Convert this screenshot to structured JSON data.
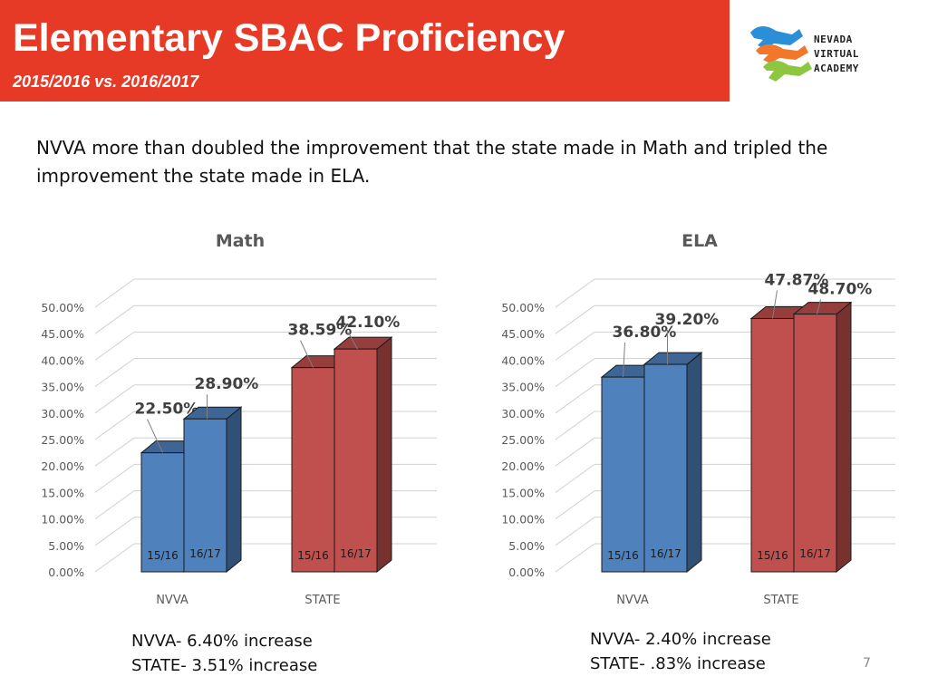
{
  "slide": {
    "title": "Elementary SBAC Proficiency",
    "subtitle": "2015/2016 vs. 2016/2017",
    "intro": "NVVA more than doubled the improvement that the state made in Math and tripled the improvement the state made in ELA.",
    "page_number": "7"
  },
  "logo": {
    "line1": "NEVADA",
    "line2": "VIRTUAL",
    "line3": "ACADEMY",
    "icon": "horse-icon",
    "colors": [
      "#2a8fd6",
      "#f2772a",
      "#8dc63f"
    ]
  },
  "chart_data": [
    {
      "type": "bar",
      "title": "Math",
      "categories": [
        "NVVA",
        "STATE"
      ],
      "sub_labels": [
        "15/16",
        "16/17"
      ],
      "series": [
        {
          "values": [
            22.5,
            38.59
          ]
        },
        {
          "values": [
            28.9,
            42.1
          ]
        }
      ],
      "data_labels": [
        [
          "22.50%",
          "28.90%"
        ],
        [
          "38.59%",
          "42.10%"
        ]
      ],
      "category_colors": [
        "#4f81bd",
        "#c0504d"
      ],
      "ylim": [
        0,
        50
      ],
      "yticks": [
        "0.00%",
        "5.00%",
        "10.00%",
        "15.00%",
        "20.00%",
        "25.00%",
        "30.00%",
        "35.00%",
        "40.00%",
        "45.00%",
        "50.00%"
      ],
      "grid": true,
      "style": "3d"
    },
    {
      "type": "bar",
      "title": "ELA",
      "categories": [
        "NVVA",
        "STATE"
      ],
      "sub_labels": [
        "15/16",
        "16/17"
      ],
      "series": [
        {
          "values": [
            36.8,
            47.87
          ]
        },
        {
          "values": [
            39.2,
            48.7
          ]
        }
      ],
      "data_labels": [
        [
          "36.80%",
          "39.20%"
        ],
        [
          "47.87%",
          "48.70%"
        ]
      ],
      "category_colors": [
        "#4f81bd",
        "#c0504d"
      ],
      "ylim": [
        0,
        50
      ],
      "yticks": [
        "0.00%",
        "5.00%",
        "10.00%",
        "15.00%",
        "20.00%",
        "25.00%",
        "30.00%",
        "35.00%",
        "40.00%",
        "45.00%",
        "50.00%"
      ],
      "grid": true,
      "style": "3d"
    }
  ],
  "notes": {
    "math": {
      "nvva": "NVVA- 6.40% increase",
      "state": "STATE- 3.51% increase"
    },
    "ela": {
      "nvva": "NVVA- 2.40% increase",
      "state": "STATE- .83% increase"
    }
  }
}
